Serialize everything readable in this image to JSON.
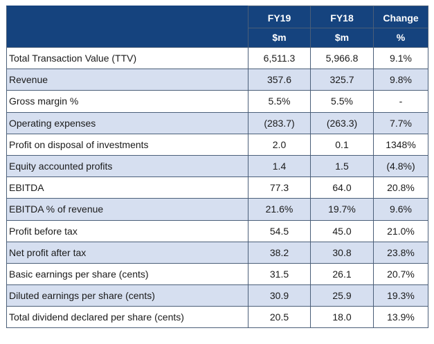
{
  "header": {
    "col1": "FY19",
    "col2": "FY18",
    "col3": "Change",
    "unit1": "$m",
    "unit2": "$m",
    "unit3": "%"
  },
  "rows": [
    {
      "label": "Total Transaction Value (TTV)",
      "fy19": "6,511.3",
      "fy18": "5,966.8",
      "change": "9.1%"
    },
    {
      "label": "Revenue",
      "fy19": "357.6",
      "fy18": "325.7",
      "change": "9.8%"
    },
    {
      "label": "Gross margin %",
      "fy19": "5.5%",
      "fy18": "5.5%",
      "change": "-"
    },
    {
      "label": "Operating expenses",
      "fy19": "(283.7)",
      "fy18": "(263.3)",
      "change": "7.7%"
    },
    {
      "label": "Profit on disposal of investments",
      "fy19": "2.0",
      "fy18": "0.1",
      "change": "1348%"
    },
    {
      "label": "Equity accounted profits",
      "fy19": "1.4",
      "fy18": "1.5",
      "change": "(4.8%)"
    },
    {
      "label": "EBITDA",
      "fy19": "77.3",
      "fy18": "64.0",
      "change": "20.8%"
    },
    {
      "label": "EBITDA % of revenue",
      "fy19": "21.6%",
      "fy18": "19.7%",
      "change": "9.6%"
    },
    {
      "label": "Profit before tax",
      "fy19": "54.5",
      "fy18": "45.0",
      "change": "21.0%"
    },
    {
      "label": "Net profit after tax",
      "fy19": "38.2",
      "fy18": "30.8",
      "change": "23.8%"
    },
    {
      "label": "Basic earnings per share (cents)",
      "fy19": "31.5",
      "fy18": "26.1",
      "change": "20.7%"
    },
    {
      "label": "Diluted earnings per share (cents)",
      "fy19": "30.9",
      "fy18": "25.9",
      "change": "19.3%"
    },
    {
      "label": "Total dividend declared per share (cents)",
      "fy19": "20.5",
      "fy18": "18.0",
      "change": "13.9%"
    }
  ]
}
